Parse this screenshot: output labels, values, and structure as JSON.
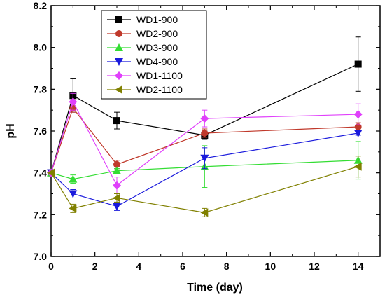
{
  "chart_data": {
    "type": "line",
    "title": "",
    "xlabel": "Time (day)",
    "ylabel": "pH",
    "xlim": [
      0,
      15
    ],
    "ylim": [
      7.0,
      8.2
    ],
    "xticks": [
      0,
      2,
      4,
      6,
      8,
      10,
      12,
      14
    ],
    "yticks": [
      7.0,
      7.2,
      7.4,
      7.6,
      7.8,
      8.0,
      8.2
    ],
    "x": [
      0,
      1,
      3,
      7,
      14
    ],
    "legend_position": "top-left",
    "grid": false,
    "series": [
      {
        "name": "WD1-900",
        "color": "#000000",
        "marker": "square",
        "values": [
          7.4,
          7.77,
          7.65,
          7.58,
          7.92
        ],
        "errors": [
          0,
          0.08,
          0.04,
          0.02,
          0.13
        ]
      },
      {
        "name": "WD2-900",
        "color": "#c0392b",
        "marker": "circle",
        "values": [
          7.4,
          7.71,
          7.44,
          7.59,
          7.62
        ],
        "errors": [
          0,
          0.02,
          0.02,
          0.02,
          0.02
        ]
      },
      {
        "name": "WD3-900",
        "color": "#33dd33",
        "marker": "triangle-up",
        "values": [
          7.4,
          7.37,
          7.41,
          7.43,
          7.46
        ],
        "errors": [
          0,
          0.02,
          0.01,
          0.1,
          0.09
        ]
      },
      {
        "name": "WD4-900",
        "color": "#1a1adc",
        "marker": "triangle-down",
        "values": [
          7.4,
          7.3,
          7.24,
          7.47,
          7.59
        ],
        "errors": [
          0,
          0.02,
          0.02,
          0.05,
          0.01
        ]
      },
      {
        "name": "WD1-1100",
        "color": "#e040fb",
        "marker": "diamond",
        "values": [
          7.4,
          7.74,
          7.34,
          7.66,
          7.68
        ],
        "errors": [
          0,
          0.04,
          0.04,
          0.04,
          0.05
        ]
      },
      {
        "name": "WD2-1100",
        "color": "#808000",
        "marker": "triangle-left",
        "values": [
          7.4,
          7.23,
          7.28,
          7.21,
          7.43
        ],
        "errors": [
          0,
          0.02,
          0.02,
          0.02,
          0.05
        ]
      }
    ]
  }
}
